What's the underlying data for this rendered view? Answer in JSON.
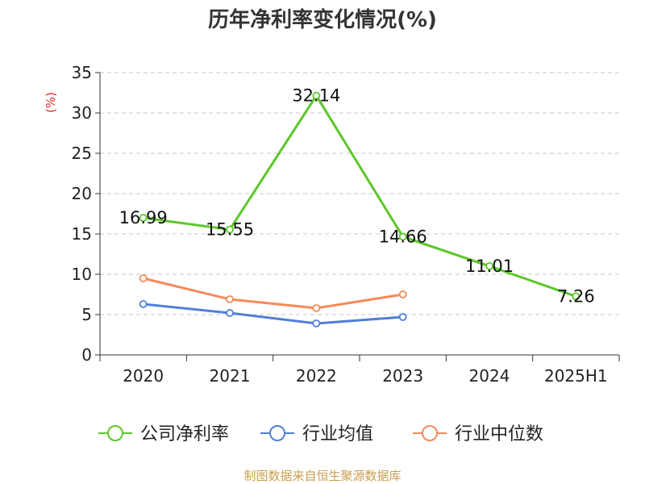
{
  "chart_data": {
    "type": "line",
    "title": "历年净利率变化情况(%)",
    "ylabel": "(%)",
    "categories": [
      "2020",
      "2021",
      "2022",
      "2023",
      "2024",
      "2025H1"
    ],
    "ylim": [
      0,
      35
    ],
    "yticks": [
      0,
      5,
      10,
      15,
      20,
      25,
      30,
      35
    ],
    "grid": true,
    "legend_position": "bottom",
    "series": [
      {
        "name": "公司净利率",
        "color": "#5cc72a",
        "values": [
          16.99,
          15.55,
          32.14,
          14.66,
          11.01,
          7.26
        ],
        "labels": [
          "16.99",
          "15.55",
          "32.14",
          "14.66",
          "11.01",
          "7.26"
        ]
      },
      {
        "name": "行业均值",
        "color": "#4f7fd9",
        "values": [
          6.3,
          5.2,
          3.9,
          4.7,
          null,
          null
        ]
      },
      {
        "name": "行业中位数",
        "color": "#f58a5b",
        "values": [
          9.5,
          6.9,
          5.8,
          7.5,
          null,
          null
        ]
      }
    ]
  },
  "source": "制图数据来自恒生聚源数据库"
}
